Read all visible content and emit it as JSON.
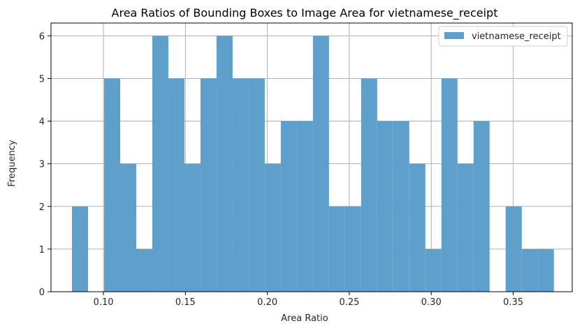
{
  "chart_data": {
    "type": "bar",
    "title": "Area Ratios of Bounding Boxes to Image Area for vietnamese_receipt",
    "xlabel": "Area Ratio",
    "ylabel": "Frequency",
    "xlim": [
      0.068,
      0.386
    ],
    "ylim": [
      0,
      6.3
    ],
    "xticks": [
      0.1,
      0.15,
      0.2,
      0.25,
      0.3,
      0.35
    ],
    "xtick_labels": [
      "0.10",
      "0.15",
      "0.20",
      "0.25",
      "0.30",
      "0.35"
    ],
    "yticks": [
      0,
      1,
      2,
      3,
      4,
      5,
      6
    ],
    "ytick_labels": [
      "0",
      "1",
      "2",
      "3",
      "4",
      "5",
      "6"
    ],
    "grid": true,
    "legend_position": "top-right",
    "bar_color": "#5f9fcc",
    "series": [
      {
        "name": "vietnamese_receipt",
        "bins": [
          {
            "x0": 0.0808,
            "x1": 0.0906,
            "count": 2
          },
          {
            "x0": 0.0906,
            "x1": 0.1004,
            "count": 0
          },
          {
            "x0": 0.1004,
            "x1": 0.1102,
            "count": 5
          },
          {
            "x0": 0.1102,
            "x1": 0.12,
            "count": 3
          },
          {
            "x0": 0.12,
            "x1": 0.1298,
            "count": 1
          },
          {
            "x0": 0.1298,
            "x1": 0.1396,
            "count": 6
          },
          {
            "x0": 0.1396,
            "x1": 0.1494,
            "count": 5
          },
          {
            "x0": 0.1494,
            "x1": 0.1592,
            "count": 3
          },
          {
            "x0": 0.1592,
            "x1": 0.169,
            "count": 5
          },
          {
            "x0": 0.169,
            "x1": 0.1788,
            "count": 6
          },
          {
            "x0": 0.1788,
            "x1": 0.1886,
            "count": 5
          },
          {
            "x0": 0.1886,
            "x1": 0.1984,
            "count": 5
          },
          {
            "x0": 0.1984,
            "x1": 0.2082,
            "count": 3
          },
          {
            "x0": 0.2082,
            "x1": 0.218,
            "count": 4
          },
          {
            "x0": 0.218,
            "x1": 0.2278,
            "count": 4
          },
          {
            "x0": 0.2278,
            "x1": 0.2376,
            "count": 6
          },
          {
            "x0": 0.2376,
            "x1": 0.2474,
            "count": 2
          },
          {
            "x0": 0.2474,
            "x1": 0.2572,
            "count": 2
          },
          {
            "x0": 0.2572,
            "x1": 0.267,
            "count": 5
          },
          {
            "x0": 0.267,
            "x1": 0.2768,
            "count": 4
          },
          {
            "x0": 0.2768,
            "x1": 0.2866,
            "count": 4
          },
          {
            "x0": 0.2866,
            "x1": 0.2964,
            "count": 3
          },
          {
            "x0": 0.2964,
            "x1": 0.3062,
            "count": 1
          },
          {
            "x0": 0.3062,
            "x1": 0.316,
            "count": 5
          },
          {
            "x0": 0.316,
            "x1": 0.3258,
            "count": 3
          },
          {
            "x0": 0.3258,
            "x1": 0.3356,
            "count": 4
          },
          {
            "x0": 0.3356,
            "x1": 0.3454,
            "count": 0
          },
          {
            "x0": 0.3454,
            "x1": 0.3552,
            "count": 2
          },
          {
            "x0": 0.3552,
            "x1": 0.365,
            "count": 1
          },
          {
            "x0": 0.365,
            "x1": 0.3748,
            "count": 1
          }
        ]
      }
    ]
  }
}
